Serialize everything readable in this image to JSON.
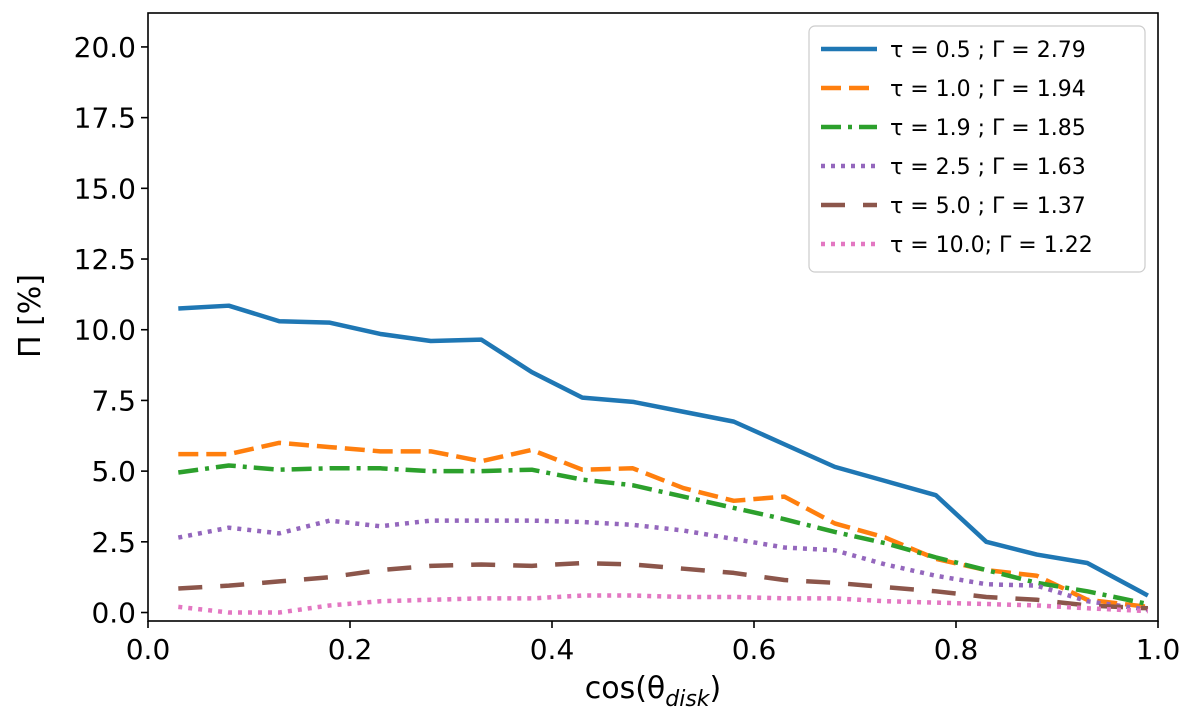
{
  "chart_data": {
    "type": "line",
    "title": "",
    "xlabel": "cos(θ",
    "xlabel_sub": "disk",
    "xlabel_close": ")",
    "ylabel": "Π [%]",
    "xlim": [
      0.0,
      1.0
    ],
    "ylim": [
      -0.3,
      21.2
    ],
    "xticks": [
      0.0,
      0.2,
      0.4,
      0.6,
      0.8,
      1.0
    ],
    "xtick_labels": [
      "0.0",
      "0.2",
      "0.4",
      "0.6",
      "0.8",
      "1.0"
    ],
    "yticks": [
      0.0,
      2.5,
      5.0,
      7.5,
      10.0,
      12.5,
      15.0,
      17.5,
      20.0
    ],
    "ytick_labels": [
      "0.0",
      "2.5",
      "5.0",
      "7.5",
      "10.0",
      "12.5",
      "15.0",
      "17.5",
      "20.0"
    ],
    "grid": false,
    "legend_position": "top-right",
    "x": [
      0.03,
      0.08,
      0.13,
      0.18,
      0.23,
      0.28,
      0.33,
      0.38,
      0.43,
      0.48,
      0.53,
      0.58,
      0.63,
      0.68,
      0.73,
      0.78,
      0.83,
      0.88,
      0.93,
      0.99
    ],
    "series": [
      {
        "name": "τ = 0.5  ; Γ = 2.79",
        "color": "#1f77b4",
        "style": "solid",
        "values": [
          10.75,
          10.85,
          10.3,
          10.25,
          9.85,
          9.6,
          9.65,
          8.5,
          7.6,
          7.45,
          7.1,
          6.75,
          5.95,
          5.15,
          4.65,
          4.15,
          2.5,
          2.05,
          1.75,
          0.6
        ]
      },
      {
        "name": "τ = 1.0  ; Γ = 1.94",
        "color": "#ff7f0e",
        "style": "dashed",
        "values": [
          5.6,
          5.6,
          6.0,
          5.85,
          5.7,
          5.7,
          5.35,
          5.75,
          5.05,
          5.1,
          4.4,
          3.95,
          4.1,
          3.15,
          2.65,
          1.9,
          1.5,
          1.3,
          0.45,
          0.2
        ]
      },
      {
        "name": "τ = 1.9  ; Γ = 1.85",
        "color": "#2ca02c",
        "style": "dashdot",
        "values": [
          4.95,
          5.2,
          5.05,
          5.1,
          5.1,
          5.0,
          5.0,
          5.05,
          4.7,
          4.5,
          4.1,
          3.7,
          3.3,
          2.85,
          2.45,
          1.95,
          1.5,
          1.05,
          0.75,
          0.3
        ]
      },
      {
        "name": "τ = 2.5  ; Γ = 1.63",
        "color": "#9467bd",
        "style": "dotted",
        "values": [
          2.65,
          3.0,
          2.8,
          3.25,
          3.05,
          3.25,
          3.25,
          3.25,
          3.2,
          3.1,
          2.9,
          2.6,
          2.3,
          2.2,
          1.7,
          1.3,
          1.0,
          0.95,
          0.4,
          0.1
        ]
      },
      {
        "name": "τ = 5.0  ; Γ = 1.37",
        "color": "#8c564b",
        "style": "longdash",
        "values": [
          0.85,
          0.95,
          1.1,
          1.25,
          1.5,
          1.65,
          1.7,
          1.65,
          1.75,
          1.7,
          1.55,
          1.4,
          1.15,
          1.05,
          0.9,
          0.75,
          0.55,
          0.45,
          0.25,
          0.15
        ]
      },
      {
        "name": "τ = 10.0; Γ = 1.22",
        "color": "#e377c2",
        "style": "dotted",
        "values": [
          0.2,
          0.0,
          0.0,
          0.25,
          0.4,
          0.45,
          0.5,
          0.5,
          0.6,
          0.6,
          0.55,
          0.55,
          0.5,
          0.5,
          0.4,
          0.35,
          0.3,
          0.25,
          0.15,
          0.05
        ]
      }
    ]
  }
}
